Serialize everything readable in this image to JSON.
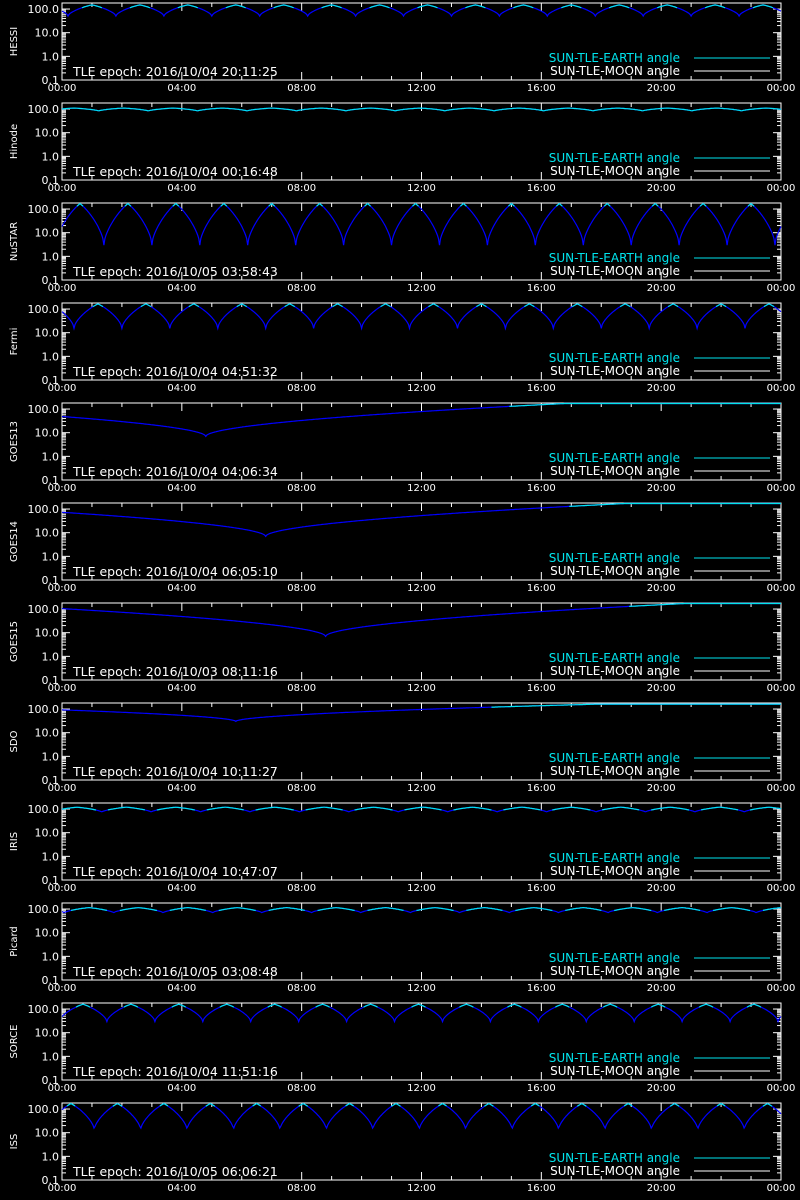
{
  "colors": {
    "background": "#000000",
    "axes": "#ffffff",
    "earth": "#00e5ee",
    "earth_dim": "#0000ff",
    "moon": "#ffffff"
  },
  "legend": {
    "earth_label": "SUN-TLE-EARTH angle",
    "moon_label": "SUN-TLE-MOON angle"
  },
  "chart_data": [
    {
      "type": "line",
      "name": "HESSI",
      "epoch_text": "TLE epoch: 2016/10/04 20:11:25",
      "x_ticks": [
        "00:00",
        "04:00",
        "08:00",
        "12:00",
        "16:00",
        "20:00",
        "00:00"
      ],
      "y_ticks": [
        "100.0",
        "10.0",
        "1.0",
        "0.1"
      ],
      "ylim": [
        0.1,
        180
      ],
      "yscale": "log",
      "series": [
        {
          "profile": "orbit",
          "period_h": 1.6,
          "max": 150,
          "min": 45,
          "phase_h": 1.0
        }
      ]
    },
    {
      "type": "line",
      "name": "Hinode",
      "epoch_text": "TLE epoch: 2016/10/04 00:16:48",
      "x_ticks": [
        "00:00",
        "04:00",
        "08:00",
        "12:00",
        "16:00",
        "20:00",
        "00:00"
      ],
      "y_ticks": [
        "100.0",
        "10.0",
        "1.0",
        "0.1"
      ],
      "ylim": [
        0.1,
        180
      ],
      "yscale": "log",
      "series": [
        {
          "profile": "orbit",
          "period_h": 1.65,
          "max": 110,
          "min": 80,
          "phase_h": 0.4
        }
      ]
    },
    {
      "type": "line",
      "name": "NuSTAR",
      "epoch_text": "TLE epoch: 2016/10/05 03:58:43",
      "x_ticks": [
        "00:00",
        "04:00",
        "08:00",
        "12:00",
        "16:00",
        "20:00",
        "00:00"
      ],
      "y_ticks": [
        "100.0",
        "10.0",
        "1.0",
        "0.1"
      ],
      "ylim": [
        0.1,
        180
      ],
      "yscale": "log",
      "series": [
        {
          "profile": "orbit",
          "period_h": 1.6,
          "max": 170,
          "min": 2,
          "phase_h": 0.6
        }
      ]
    },
    {
      "type": "line",
      "name": "Fermi",
      "epoch_text": "TLE epoch: 2016/10/04 04:51:32",
      "x_ticks": [
        "00:00",
        "04:00",
        "08:00",
        "12:00",
        "16:00",
        "20:00",
        "00:00"
      ],
      "y_ticks": [
        "100.0",
        "10.0",
        "1.0",
        "0.1"
      ],
      "ylim": [
        0.1,
        180
      ],
      "yscale": "log",
      "series": [
        {
          "profile": "orbit",
          "period_h": 1.6,
          "max": 165,
          "min": 12,
          "phase_h": 1.2
        }
      ]
    },
    {
      "type": "line",
      "name": "GOES13",
      "epoch_text": "TLE epoch: 2016/10/04 04:06:34",
      "x_ticks": [
        "00:00",
        "04:00",
        "08:00",
        "12:00",
        "16:00",
        "20:00",
        "00:00"
      ],
      "y_ticks": [
        "100.0",
        "10.0",
        "1.0",
        "0.1"
      ],
      "ylim": [
        0.1,
        180
      ],
      "yscale": "log",
      "series": [
        {
          "profile": "geo",
          "min_h": 4.8,
          "min": 7,
          "max": 172,
          "max_h": 16.8
        }
      ]
    },
    {
      "type": "line",
      "name": "GOES14",
      "epoch_text": "TLE epoch: 2016/10/04 06:05:10",
      "x_ticks": [
        "00:00",
        "04:00",
        "08:00",
        "12:00",
        "16:00",
        "20:00",
        "00:00"
      ],
      "y_ticks": [
        "100.0",
        "10.0",
        "1.0",
        "0.1"
      ],
      "ylim": [
        0.1,
        180
      ],
      "yscale": "log",
      "series": [
        {
          "profile": "geo",
          "min_h": 6.8,
          "min": 7,
          "max": 172,
          "max_h": 18.8
        }
      ]
    },
    {
      "type": "line",
      "name": "GOES15",
      "epoch_text": "TLE epoch: 2016/10/03 08:11:16",
      "x_ticks": [
        "00:00",
        "04:00",
        "08:00",
        "12:00",
        "16:00",
        "20:00",
        "00:00"
      ],
      "y_ticks": [
        "100.0",
        "10.0",
        "1.0",
        "0.1"
      ],
      "ylim": [
        0.1,
        180
      ],
      "yscale": "log",
      "series": [
        {
          "profile": "geo",
          "min_h": 8.8,
          "min": 7,
          "max": 172,
          "max_h": 20.8
        }
      ]
    },
    {
      "type": "line",
      "name": "SDO",
      "epoch_text": "TLE epoch: 2016/10/04 10:11:27",
      "x_ticks": [
        "00:00",
        "04:00",
        "08:00",
        "12:00",
        "16:00",
        "20:00",
        "00:00"
      ],
      "y_ticks": [
        "100.0",
        "10.0",
        "1.0",
        "0.1"
      ],
      "ylim": [
        0.1,
        180
      ],
      "yscale": "log",
      "series": [
        {
          "profile": "geo",
          "min_h": 5.8,
          "min": 30,
          "max": 160,
          "max_h": 17.8
        }
      ]
    },
    {
      "type": "line",
      "name": "IRIS",
      "epoch_text": "TLE epoch: 2016/10/04 10:47:07",
      "x_ticks": [
        "00:00",
        "04:00",
        "08:00",
        "12:00",
        "16:00",
        "20:00",
        "00:00"
      ],
      "y_ticks": [
        "100.0",
        "10.0",
        "1.0",
        "0.1"
      ],
      "ylim": [
        0.1,
        180
      ],
      "yscale": "log",
      "series": [
        {
          "profile": "orbit",
          "period_h": 1.65,
          "max": 120,
          "min": 70,
          "phase_h": 0.5
        }
      ]
    },
    {
      "type": "line",
      "name": "Picard",
      "epoch_text": "TLE epoch: 2016/10/05 03:08:48",
      "x_ticks": [
        "00:00",
        "04:00",
        "08:00",
        "12:00",
        "16:00",
        "20:00",
        "00:00"
      ],
      "y_ticks": [
        "100.0",
        "10.0",
        "1.0",
        "0.1"
      ],
      "ylim": [
        0.1,
        180
      ],
      "yscale": "log",
      "series": [
        {
          "profile": "orbit",
          "period_h": 1.65,
          "max": 115,
          "min": 65,
          "phase_h": 0.9
        }
      ]
    },
    {
      "type": "line",
      "name": "SORCE",
      "epoch_text": "TLE epoch: 2016/10/04 11:51:16",
      "x_ticks": [
        "00:00",
        "04:00",
        "08:00",
        "12:00",
        "16:00",
        "20:00",
        "00:00"
      ],
      "y_ticks": [
        "100.0",
        "10.0",
        "1.0",
        "0.1"
      ],
      "ylim": [
        0.1,
        180
      ],
      "yscale": "log",
      "series": [
        {
          "profile": "orbit",
          "period_h": 1.6,
          "max": 160,
          "min": 25,
          "phase_h": 0.7
        }
      ]
    },
    {
      "type": "line",
      "name": "ISS",
      "epoch_text": "TLE epoch: 2016/10/05 06:06:21",
      "x_ticks": [
        "00:00",
        "04:00",
        "08:00",
        "12:00",
        "16:00",
        "20:00",
        "00:00"
      ],
      "y_ticks": [
        "100.0",
        "10.0",
        "1.0",
        "0.1"
      ],
      "ylim": [
        0.1,
        180
      ],
      "yscale": "log",
      "series": [
        {
          "profile": "orbit",
          "period_h": 1.55,
          "max": 170,
          "min": 10,
          "phase_h": 0.3
        }
      ]
    }
  ]
}
